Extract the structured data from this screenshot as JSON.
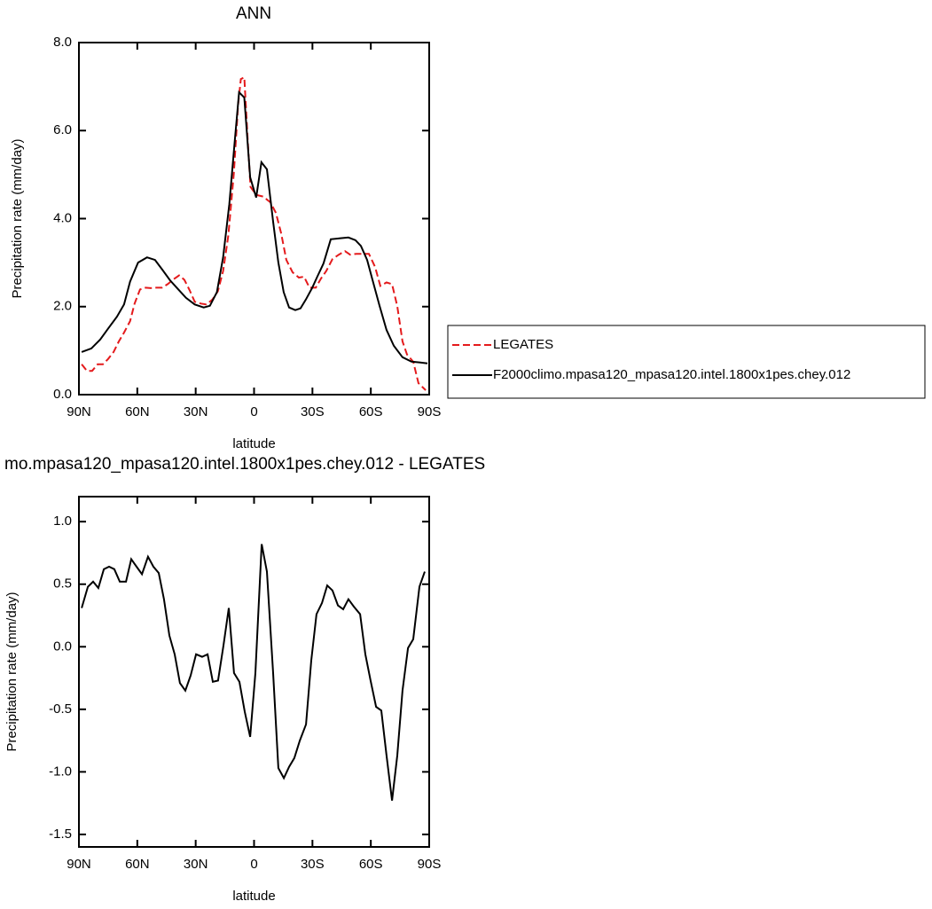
{
  "chart_data": [
    {
      "type": "line",
      "title": "ANN",
      "xlabel": "latitude",
      "ylabel": "Precipitation rate (mm/day)",
      "xlim": [
        90,
        -90
      ],
      "xticks": [
        {
          "value": 90,
          "label": "90N"
        },
        {
          "value": 60,
          "label": "60N"
        },
        {
          "value": 30,
          "label": "30N"
        },
        0,
        {
          "value": -30,
          "label": "30S"
        },
        {
          "value": -60,
          "label": "60S"
        },
        {
          "value": -90,
          "label": "90S"
        }
      ],
      "ylim": [
        0,
        8
      ],
      "yticks": [
        {
          "value": 0,
          "label": "0.0"
        },
        {
          "value": 2,
          "label": "2.0"
        },
        {
          "value": 4,
          "label": "4.0"
        },
        {
          "value": 6,
          "label": "6.0"
        },
        {
          "value": 8,
          "label": "8.0"
        }
      ],
      "legend": "right",
      "series": [
        {
          "name": "LEGATES",
          "color": "#e41a1c",
          "linestyle": "dashed",
          "x": [
            88.6,
            85.9,
            83.2,
            80.4,
            77.7,
            75.0,
            72.2,
            69.5,
            66.8,
            63.7,
            61.4,
            58.6,
            55.8,
            53.1,
            50.4,
            47.3,
            44.4,
            41.7,
            38.5,
            35.8,
            33.1,
            30.5,
            27.3,
            24.5,
            21.4,
            18.6,
            15.9,
            13.2,
            10.4,
            8.2,
            6.8,
            5.0,
            3.2,
            1.8,
            -1.1,
            -4.7,
            -8.4,
            -11.2,
            -13.9,
            -16.6,
            -19.8,
            -23.0,
            -25.7,
            -28.5,
            -31.7,
            -34.4,
            -37.1,
            -40.3,
            -43.5,
            -46.7,
            -49.4,
            -52.6,
            -55.8,
            -59.0,
            -62.2,
            -64.9,
            -68.1,
            -70.9,
            -73.6,
            -76.3,
            -78.6,
            -81.8,
            -84.5,
            -88.2
          ],
          "values": [
            0.69,
            0.54,
            0.54,
            0.69,
            0.69,
            0.81,
            0.97,
            1.21,
            1.41,
            1.67,
            2.07,
            2.39,
            2.43,
            2.42,
            2.43,
            2.43,
            2.51,
            2.61,
            2.71,
            2.61,
            2.37,
            2.11,
            2.07,
            2.05,
            2.16,
            2.35,
            2.81,
            3.62,
            5.03,
            6.59,
            7.17,
            7.21,
            5.73,
            4.72,
            4.54,
            4.5,
            4.37,
            4.13,
            3.67,
            3.06,
            2.78,
            2.66,
            2.68,
            2.43,
            2.43,
            2.64,
            2.81,
            3.08,
            3.18,
            3.26,
            3.18,
            3.2,
            3.2,
            3.2,
            2.9,
            2.47,
            2.55,
            2.51,
            2.01,
            1.21,
            0.91,
            0.75,
            0.26,
            0.1
          ]
        },
        {
          "name": "F2000climo.mpasa120_mpasa120.intel.1800x1pes.chey.012",
          "color": "#000000",
          "linestyle": "solid",
          "x": [
            88.6,
            83.6,
            79.1,
            75.0,
            70.5,
            66.8,
            63.7,
            59.6,
            55.0,
            50.9,
            47.3,
            43.2,
            39.1,
            35.0,
            30.5,
            25.9,
            22.7,
            19.1,
            15.9,
            12.7,
            10.0,
            7.7,
            5.0,
            2.0,
            -1.1,
            -3.8,
            -6.6,
            -9.8,
            -12.5,
            -15.2,
            -18.0,
            -21.2,
            -23.9,
            -26.6,
            -29.8,
            -32.5,
            -35.7,
            -39.4,
            -43.9,
            -48.5,
            -52.1,
            -54.9,
            -58.1,
            -60.8,
            -64.5,
            -68.1,
            -71.8,
            -76.3,
            -80.9,
            -85.4,
            -89.1
          ],
          "values": [
            0.97,
            1.05,
            1.25,
            1.5,
            1.77,
            2.05,
            2.57,
            3.0,
            3.12,
            3.06,
            2.85,
            2.6,
            2.4,
            2.2,
            2.05,
            1.98,
            2.02,
            2.33,
            3.12,
            4.33,
            5.73,
            6.87,
            6.75,
            4.94,
            4.48,
            5.28,
            5.12,
            3.93,
            3.0,
            2.33,
            1.98,
            1.92,
            1.96,
            2.16,
            2.42,
            2.68,
            2.98,
            3.53,
            3.55,
            3.57,
            3.51,
            3.38,
            3.06,
            2.62,
            2.02,
            1.47,
            1.11,
            0.85,
            0.75,
            0.73,
            0.71
          ]
        }
      ]
    },
    {
      "type": "line",
      "title": "mo.mpasa120_mpasa120.intel.1800x1pes.chey.012 - LEGATES",
      "xlabel": "latitude",
      "ylabel": "Precipitation rate (mm/day)",
      "xlim": [
        90,
        -90
      ],
      "xticks": [
        {
          "value": 90,
          "label": "90N"
        },
        {
          "value": 60,
          "label": "60N"
        },
        {
          "value": 30,
          "label": "30N"
        },
        0,
        {
          "value": -30,
          "label": "30S"
        },
        {
          "value": -60,
          "label": "60S"
        },
        {
          "value": -90,
          "label": "90S"
        }
      ],
      "ylim": [
        -1.6,
        1.2
      ],
      "yticks": [
        {
          "value": -1.5,
          "label": "-1.5"
        },
        {
          "value": -1,
          "label": "-1.0"
        },
        {
          "value": -0.5,
          "label": "-0.5"
        },
        {
          "value": 0,
          "label": "0.0"
        },
        {
          "value": 0.5,
          "label": "0.5"
        },
        {
          "value": 1,
          "label": "1.0"
        }
      ],
      "series": [
        {
          "color": "#000000",
          "linestyle": "solid",
          "x": [
            88.6,
            85.4,
            82.7,
            80.0,
            77.2,
            74.5,
            71.8,
            69.0,
            65.8,
            63.1,
            60.4,
            57.6,
            54.5,
            51.7,
            49.0,
            46.3,
            43.5,
            40.8,
            38.1,
            35.3,
            32.6,
            29.8,
            26.7,
            23.9,
            21.2,
            18.5,
            15.7,
            13.0,
            10.3,
            7.5,
            4.8,
            2.0,
            -0.7,
            -3.9,
            -6.6,
            -9.8,
            -12.5,
            -15.3,
            -18.0,
            -20.7,
            -23.5,
            -26.7,
            -29.4,
            -32.1,
            -34.9,
            -37.6,
            -40.3,
            -43.1,
            -45.8,
            -48.5,
            -51.3,
            -54.5,
            -57.2,
            -59.9,
            -62.7,
            -65.4,
            -68.1,
            -70.9,
            -73.6,
            -76.3,
            -79.1,
            -81.8,
            -85.0,
            -87.7
          ],
          "values": [
            0.31,
            0.48,
            0.52,
            0.47,
            0.62,
            0.64,
            0.62,
            0.52,
            0.52,
            0.7,
            0.64,
            0.58,
            0.72,
            0.64,
            0.59,
            0.38,
            0.09,
            -0.06,
            -0.29,
            -0.35,
            -0.23,
            -0.06,
            -0.08,
            -0.06,
            -0.28,
            -0.27,
            0.01,
            0.31,
            -0.21,
            -0.28,
            -0.52,
            -0.72,
            -0.21,
            0.82,
            0.6,
            -0.21,
            -0.97,
            -1.05,
            -0.96,
            -0.89,
            -0.75,
            -0.62,
            -0.11,
            0.26,
            0.35,
            0.49,
            0.45,
            0.33,
            0.3,
            0.38,
            0.32,
            0.26,
            -0.06,
            -0.27,
            -0.48,
            -0.51,
            -0.87,
            -1.23,
            -0.87,
            -0.35,
            -0.01,
            0.06,
            0.48,
            0.6
          ]
        }
      ]
    }
  ]
}
